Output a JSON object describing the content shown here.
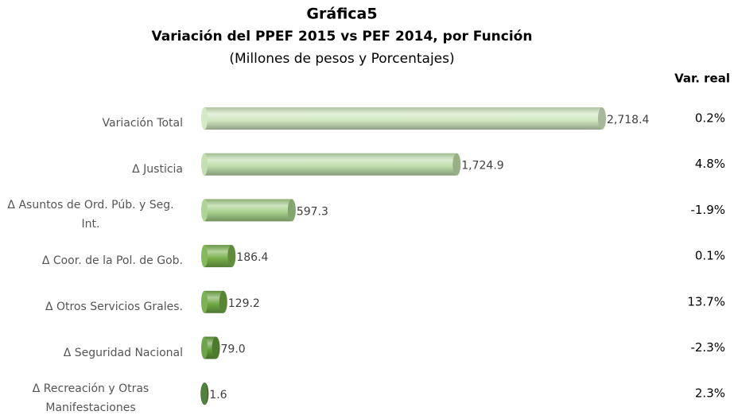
{
  "chart_data": {
    "type": "bar",
    "orientation": "horizontal",
    "title": "Gráfica5",
    "subtitle": "Variación del PPEF 2015 vs PEF 2014, por Función",
    "note": "(Millones de pesos y Porcentajes)",
    "categories": [
      "Variación Total",
      "Δ Justicia",
      "Δ Asuntos de Ord. Púb. y Seg. Int.",
      "Δ Coor. de la Pol. de Gob.",
      "Δ Otros Servicios Grales.",
      "Δ Seguridad Nacional",
      "Δ Recreación y Otras Manifestaciones"
    ],
    "values": [
      2718.4,
      1724.9,
      597.3,
      186.4,
      129.2,
      79.0,
      1.6
    ],
    "value_labels": [
      "2,718.4",
      "1,724.9",
      "597.3",
      "186.4",
      "129.2",
      "79.0",
      "1.6"
    ],
    "colors": [
      "#cfe6bf",
      "#bddcaa",
      "#a5cf8a",
      "#78b04c",
      "#6ea843",
      "#5f9a38",
      "#3d7426"
    ],
    "var_real": {
      "title": "Var. real",
      "values": [
        0.2,
        4.8,
        -1.9,
        0.1,
        13.7,
        -2.3,
        2.3
      ],
      "value_labels": [
        "0.2%",
        "4.8%",
        "-1.9%",
        "0.1%",
        "13.7%",
        "-2.3%",
        "2.3%"
      ]
    }
  }
}
